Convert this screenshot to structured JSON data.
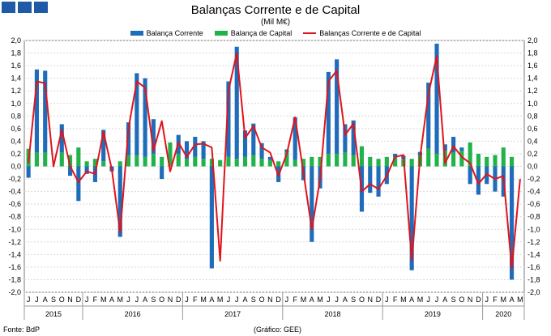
{
  "title": "Balanças Corrente e de Capital",
  "subtitle": "(Mil M€)",
  "footer": {
    "source": "Fonte: BdP",
    "graph_credit": "(Gráfico: GEE)"
  },
  "colors": {
    "corrente": "#1f6dba",
    "capital": "#22b24c",
    "total": "#e0141b",
    "logo": "#1f5aa6"
  },
  "chart_data": {
    "type": "bar",
    "grid": true,
    "legend_position": "top-center",
    "ylim": [
      -2.0,
      2.0
    ],
    "y_ticks": [
      "2,0",
      "1,8",
      "1,6",
      "1,4",
      "1,2",
      "1,0",
      "0,8",
      "0,6",
      "0,4",
      "0,2",
      "0,0",
      "-0,2",
      "-0,4",
      "-0,6",
      "-0,8",
      "-1,0",
      "-1,2",
      "-1,4",
      "-1,6",
      "-1,8",
      "-2,0"
    ],
    "categories": [
      "J",
      "J",
      "A",
      "S",
      "O",
      "N",
      "D",
      "J",
      "F",
      "M",
      "A",
      "M",
      "J",
      "J",
      "A",
      "S",
      "O",
      "N",
      "D",
      "J",
      "F",
      "M",
      "A",
      "M",
      "J",
      "J",
      "A",
      "S",
      "O",
      "N",
      "D",
      "J",
      "F",
      "M",
      "A",
      "M",
      "J",
      "J",
      "A",
      "S",
      "O",
      "N",
      "D",
      "J",
      "F",
      "M",
      "A",
      "M",
      "J",
      "J",
      "A",
      "S",
      "O",
      "N",
      "D",
      "J",
      "F",
      "M",
      "A",
      "M"
    ],
    "years": [
      {
        "label": "2015",
        "start": 0,
        "end": 6
      },
      {
        "label": "2016",
        "start": 7,
        "end": 18
      },
      {
        "label": "2017",
        "start": 19,
        "end": 30
      },
      {
        "label": "2018",
        "start": 31,
        "end": 42
      },
      {
        "label": "2019",
        "start": 43,
        "end": 54
      },
      {
        "label": "2020",
        "start": 55,
        "end": 59
      }
    ],
    "series": [
      {
        "name": "Balança Corrente",
        "kind": "bar",
        "values": [
          -0.18,
          1.32,
          1.3,
          0.0,
          0.45,
          -0.15,
          -0.55,
          -0.12,
          -0.25,
          0.5,
          -0.08,
          -1.12,
          0.52,
          1.3,
          1.25,
          0.55,
          -0.2,
          0.0,
          0.3,
          0.28,
          0.32,
          0.28,
          -1.62,
          0.0,
          1.2,
          1.78,
          0.42,
          0.5,
          0.25,
          0.05,
          -0.25,
          0.05,
          0.68,
          -0.22,
          -1.2,
          -0.35,
          1.3,
          1.5,
          0.45,
          0.55,
          -0.72,
          -0.42,
          -0.48,
          -0.28,
          0.05,
          0.05,
          -1.65,
          0.05,
          1.05,
          1.75,
          0.1,
          0.25,
          0.05,
          -0.28,
          -0.45,
          -0.28,
          -0.4,
          -0.48,
          -1.8,
          0.0
        ]
      },
      {
        "name": "Balança de Capital",
        "kind": "bar",
        "values": [
          0.28,
          0.22,
          0.22,
          0.0,
          0.22,
          0.18,
          0.3,
          0.08,
          0.12,
          0.08,
          0.0,
          0.08,
          0.18,
          0.18,
          0.15,
          0.2,
          0.15,
          0.38,
          0.2,
          0.12,
          0.15,
          0.12,
          0.12,
          0.1,
          0.15,
          0.12,
          0.15,
          0.18,
          0.12,
          0.1,
          0.08,
          0.22,
          0.1,
          0.12,
          0.15,
          0.15,
          0.2,
          0.2,
          0.22,
          0.18,
          0.32,
          0.15,
          0.12,
          0.15,
          0.15,
          0.12,
          0.12,
          0.18,
          0.28,
          0.2,
          0.25,
          0.22,
          0.25,
          0.38,
          0.2,
          0.15,
          0.18,
          0.3,
          0.15,
          0.0
        ]
      },
      {
        "name": "Balanças Corrente e de Capital",
        "kind": "line",
        "values": [
          0.05,
          1.35,
          1.32,
          0.0,
          0.58,
          0.0,
          -0.25,
          -0.08,
          -0.12,
          0.55,
          -0.05,
          -1.05,
          0.6,
          1.35,
          1.25,
          0.25,
          0.72,
          -0.08,
          0.38,
          0.15,
          0.35,
          0.36,
          0.3,
          -1.5,
          1.2,
          1.8,
          0.45,
          0.64,
          0.3,
          0.22,
          -0.15,
          0.2,
          0.78,
          -0.1,
          -1.0,
          -0.2,
          1.35,
          1.52,
          0.5,
          0.68,
          -0.4,
          -0.28,
          -0.36,
          -0.15,
          0.15,
          0.18,
          -1.5,
          0.15,
          1.15,
          1.75,
          0.05,
          0.32,
          0.15,
          0.05,
          -0.28,
          -0.12,
          -0.2,
          -0.15,
          -1.62,
          -0.2
        ]
      }
    ]
  }
}
